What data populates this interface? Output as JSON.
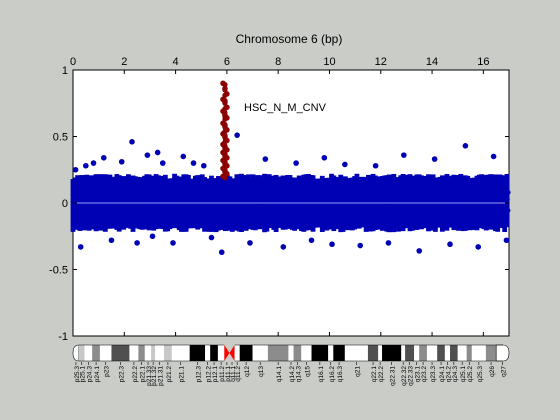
{
  "chart_data": {
    "type": "scatter",
    "title": "Chromosome 6 (bp)",
    "xlim": [
      0,
      17
    ],
    "ylim": [
      -1,
      1
    ],
    "x_ticks": [
      0,
      2,
      4,
      6,
      8,
      10,
      12,
      14,
      16
    ],
    "y_ticks": [
      1,
      0.5,
      0,
      -0.5,
      -1
    ],
    "y_tick_labels": [
      "1",
      "0.5",
      "0",
      "-0.5",
      "-1"
    ],
    "annotation": "HSC_N_M_CNV",
    "grid": false,
    "baseline": 0,
    "colors": {
      "background": "#c9ccc7",
      "plot_area": "#ffffff",
      "point": "#0000b4",
      "highlight_point": "#8b0000",
      "baseline": "#9aa0ff",
      "centromere": "#ff0000"
    },
    "series": [
      {
        "role": "probes",
        "x_range": [
          0,
          17
        ],
        "band_y": [
          -0.2,
          0.2
        ],
        "outliers": [
          [
            0.1,
            0.25
          ],
          [
            0.3,
            -0.33
          ],
          [
            0.5,
            0.28
          ],
          [
            0.8,
            0.3
          ],
          [
            1.2,
            0.34
          ],
          [
            1.5,
            -0.28
          ],
          [
            1.9,
            0.31
          ],
          [
            2.3,
            0.46
          ],
          [
            2.5,
            -0.3
          ],
          [
            2.9,
            0.36
          ],
          [
            3.1,
            -0.25
          ],
          [
            3.3,
            0.38
          ],
          [
            3.5,
            0.3
          ],
          [
            3.9,
            -0.3
          ],
          [
            4.3,
            0.35
          ],
          [
            4.7,
            0.3
          ],
          [
            5.1,
            0.28
          ],
          [
            5.4,
            -0.26
          ],
          [
            5.8,
            -0.37
          ],
          [
            6.4,
            0.51
          ],
          [
            6.9,
            -0.3
          ],
          [
            7.5,
            0.33
          ],
          [
            8.2,
            -0.33
          ],
          [
            8.7,
            0.3
          ],
          [
            9.3,
            -0.28
          ],
          [
            9.8,
            0.34
          ],
          [
            10.1,
            -0.31
          ],
          [
            10.6,
            0.29
          ],
          [
            11.2,
            -0.32
          ],
          [
            11.8,
            0.28
          ],
          [
            12.3,
            -0.3
          ],
          [
            12.9,
            0.36
          ],
          [
            13.5,
            -0.36
          ],
          [
            14.1,
            0.33
          ],
          [
            14.7,
            -0.31
          ],
          [
            15.3,
            0.43
          ],
          [
            15.8,
            -0.33
          ],
          [
            16.4,
            0.35
          ],
          [
            16.9,
            -0.28
          ]
        ]
      },
      {
        "role": "amplified region",
        "x_range": [
          5.85,
          6.0
        ],
        "values": [
          0.9,
          0.86,
          0.82,
          0.78,
          0.76,
          0.72,
          0.69,
          0.66,
          0.64,
          0.6,
          0.58,
          0.55,
          0.52,
          0.5,
          0.47,
          0.44,
          0.42,
          0.4,
          0.38,
          0.36,
          0.34,
          0.32,
          0.3,
          0.28,
          0.26,
          0.24,
          0.22,
          0.2
        ]
      }
    ],
    "ideogram": {
      "bands": [
        {
          "name": "p25.3",
          "start": 0,
          "end": 0.23,
          "stain": "gneg",
          "shape": "tip-left"
        },
        {
          "name": "p25.1",
          "start": 0.23,
          "end": 0.45,
          "stain": "gpos25"
        },
        {
          "name": "p24.3",
          "start": 0.45,
          "end": 0.75,
          "stain": "gneg"
        },
        {
          "name": "p24.1",
          "start": 0.75,
          "end": 1.05,
          "stain": "gpos50"
        },
        {
          "name": "p23",
          "start": 1.05,
          "end": 1.5,
          "stain": "gneg"
        },
        {
          "name": "p22.3",
          "start": 1.5,
          "end": 2.2,
          "stain": "gpos75"
        },
        {
          "name": "p22.2",
          "start": 2.2,
          "end": 2.55,
          "stain": "gneg"
        },
        {
          "name": "p22.1",
          "start": 2.55,
          "end": 2.8,
          "stain": "gpos50"
        },
        {
          "name": "p21.33",
          "start": 2.8,
          "end": 3.05,
          "stain": "gneg"
        },
        {
          "name": "p21.32",
          "start": 3.05,
          "end": 3.2,
          "stain": "gpos25"
        },
        {
          "name": "p21.31",
          "start": 3.2,
          "end": 3.55,
          "stain": "gneg"
        },
        {
          "name": "p21.2",
          "start": 3.55,
          "end": 3.85,
          "stain": "gpos25"
        },
        {
          "name": "p21.1",
          "start": 3.85,
          "end": 4.55,
          "stain": "gneg"
        },
        {
          "name": "p12.3",
          "start": 4.55,
          "end": 5.15,
          "stain": "gpos100"
        },
        {
          "name": "p12.2",
          "start": 5.15,
          "end": 5.35,
          "stain": "gneg"
        },
        {
          "name": "p12.1",
          "start": 5.35,
          "end": 5.65,
          "stain": "gpos100"
        },
        {
          "name": "p11.2",
          "start": 5.65,
          "end": 5.9,
          "stain": "gneg"
        },
        {
          "name": "p11.1",
          "start": 5.9,
          "end": 6.1,
          "stain": "acen",
          "shape": "cen-left"
        },
        {
          "name": "q11.1",
          "start": 6.1,
          "end": 6.3,
          "stain": "acen",
          "shape": "cen-right"
        },
        {
          "name": "q11.2",
          "start": 6.3,
          "end": 6.5,
          "stain": "gneg"
        },
        {
          "name": "q12",
          "start": 6.5,
          "end": 7.0,
          "stain": "gpos100"
        },
        {
          "name": "q13",
          "start": 7.0,
          "end": 7.6,
          "stain": "gneg"
        },
        {
          "name": "q14.1",
          "start": 7.6,
          "end": 8.4,
          "stain": "gpos50"
        },
        {
          "name": "q14.2",
          "start": 8.4,
          "end": 8.6,
          "stain": "gneg"
        },
        {
          "name": "q14.3",
          "start": 8.6,
          "end": 8.9,
          "stain": "gpos50"
        },
        {
          "name": "q15",
          "start": 8.9,
          "end": 9.3,
          "stain": "gneg"
        },
        {
          "name": "q16.1",
          "start": 9.3,
          "end": 9.95,
          "stain": "gpos100"
        },
        {
          "name": "q16.2",
          "start": 9.95,
          "end": 10.15,
          "stain": "gneg"
        },
        {
          "name": "q16.3",
          "start": 10.15,
          "end": 10.6,
          "stain": "gpos100"
        },
        {
          "name": "q21",
          "start": 10.6,
          "end": 11.5,
          "stain": "gneg"
        },
        {
          "name": "q22.1",
          "start": 11.5,
          "end": 11.9,
          "stain": "gpos75"
        },
        {
          "name": "q22.2",
          "start": 11.9,
          "end": 12.05,
          "stain": "gneg"
        },
        {
          "name": "q22.31",
          "start": 12.05,
          "end": 12.8,
          "stain": "gpos100"
        },
        {
          "name": "q22.32",
          "start": 12.8,
          "end": 12.95,
          "stain": "gneg"
        },
        {
          "name": "q22.33",
          "start": 12.95,
          "end": 13.3,
          "stain": "gpos75"
        },
        {
          "name": "q23.1",
          "start": 13.3,
          "end": 13.5,
          "stain": "gneg"
        },
        {
          "name": "q23.2",
          "start": 13.5,
          "end": 13.8,
          "stain": "gpos50"
        },
        {
          "name": "q23.3",
          "start": 13.8,
          "end": 14.2,
          "stain": "gneg"
        },
        {
          "name": "q24.1",
          "start": 14.2,
          "end": 14.5,
          "stain": "gpos75"
        },
        {
          "name": "q24.2",
          "start": 14.5,
          "end": 14.7,
          "stain": "gneg"
        },
        {
          "name": "q24.3",
          "start": 14.7,
          "end": 15.0,
          "stain": "gpos75"
        },
        {
          "name": "q25.1",
          "start": 15.0,
          "end": 15.35,
          "stain": "gneg"
        },
        {
          "name": "q25.2",
          "start": 15.35,
          "end": 15.55,
          "stain": "gpos50"
        },
        {
          "name": "q25.3",
          "start": 15.55,
          "end": 16.1,
          "stain": "gneg"
        },
        {
          "name": "q26",
          "start": 16.1,
          "end": 16.5,
          "stain": "gpos50"
        },
        {
          "name": "q27",
          "start": 16.5,
          "end": 17.0,
          "stain": "gneg",
          "shape": "tip-right"
        }
      ],
      "stain_colors": {
        "gneg": "#ffffff",
        "gpos25": "#c8c8c8",
        "gpos50": "#8c8c8c",
        "gpos75": "#505050",
        "gpos100": "#000000",
        "acen": "#ff0000"
      }
    }
  }
}
